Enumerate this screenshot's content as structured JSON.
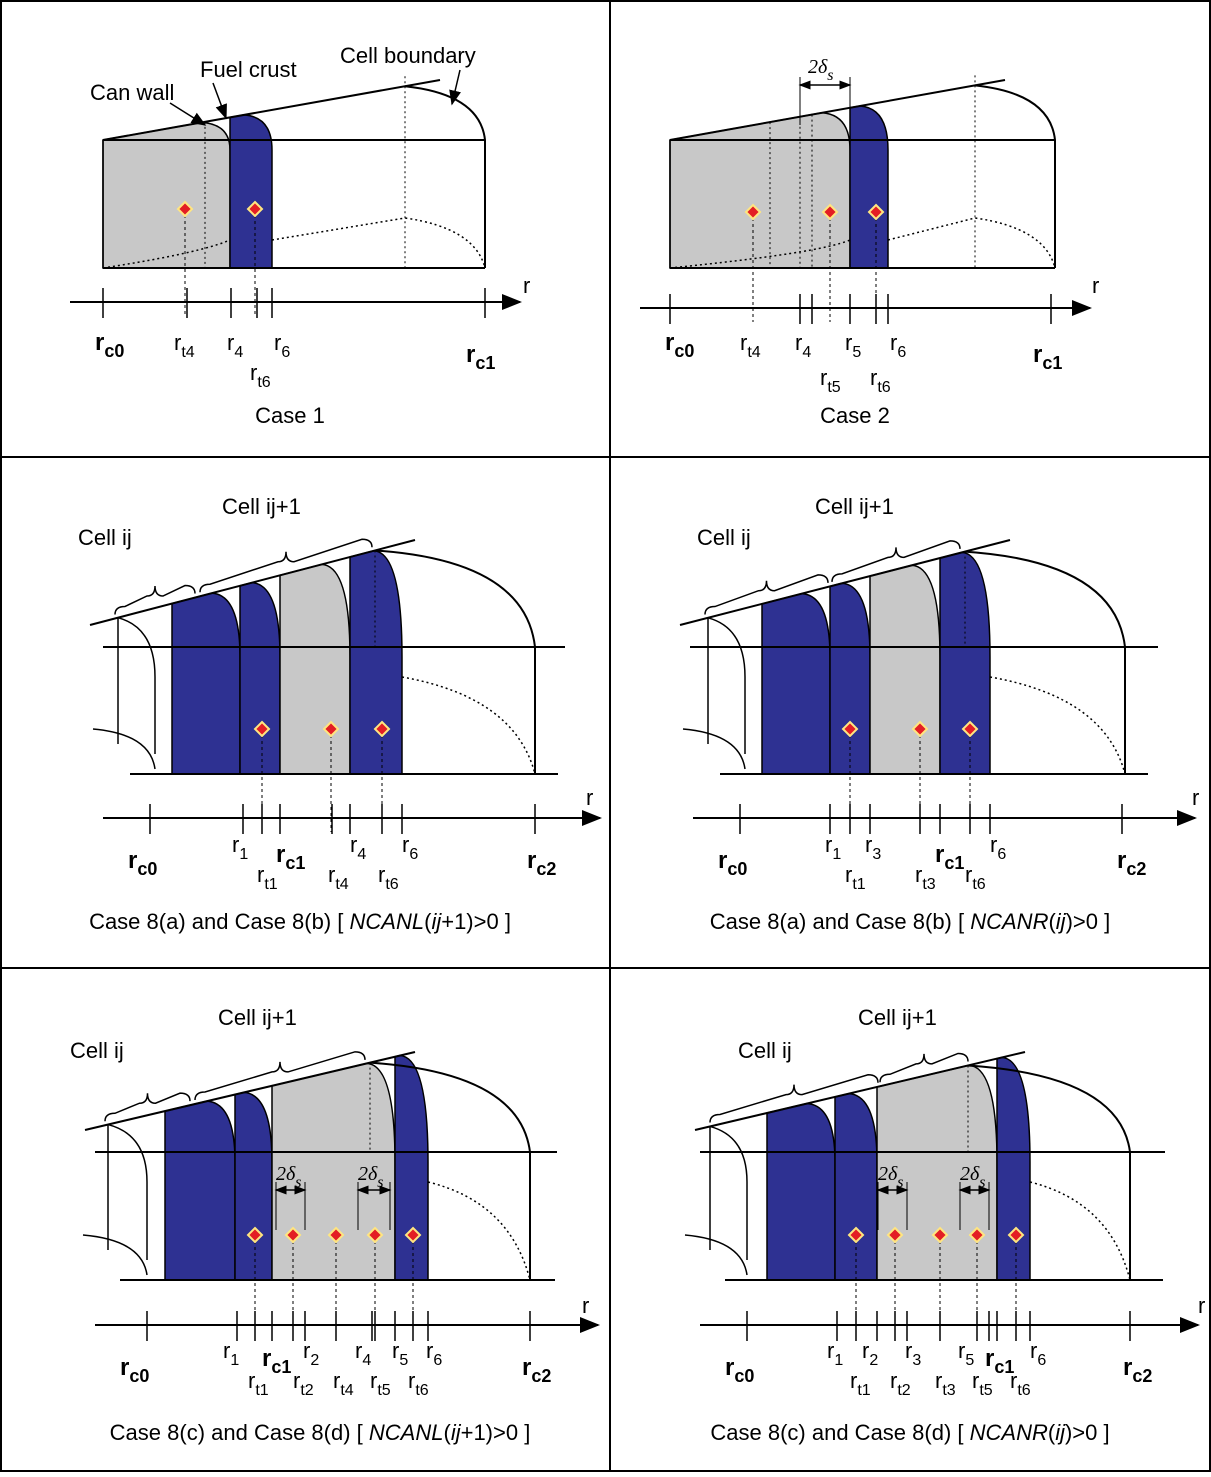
{
  "panels": [
    {
      "tick_labels": [
        {
          "base": "r",
          "sub": "c0",
          "bold": true
        },
        {
          "base": "r",
          "sub": "t4"
        },
        {
          "base": "r",
          "sub": "4"
        },
        {
          "base": "r",
          "sub": "6"
        },
        {
          "base": "r",
          "sub": "t6"
        },
        {
          "base": "r",
          "sub": "c1",
          "bold": true
        }
      ],
      "axis_label": "r",
      "annotations": [
        "Can wall",
        "Fuel crust",
        "Cell boundary"
      ],
      "spacing_labels": [],
      "caption": [
        {
          "text": "Case 1"
        }
      ]
    },
    {
      "tick_labels": [
        {
          "base": "r",
          "sub": "c0",
          "bold": true
        },
        {
          "base": "r",
          "sub": "t4"
        },
        {
          "base": "r",
          "sub": "4"
        },
        {
          "base": "r",
          "sub": "5"
        },
        {
          "base": "r",
          "sub": "6"
        },
        {
          "base": "r",
          "sub": "t5"
        },
        {
          "base": "r",
          "sub": "t6"
        },
        {
          "base": "r",
          "sub": "c1",
          "bold": true
        }
      ],
      "axis_label": "r",
      "annotations": [],
      "spacing_labels": [
        {
          "base": "2δ",
          "sub": "s"
        }
      ],
      "caption": [
        {
          "text": "Case 2"
        }
      ]
    },
    {
      "tick_labels": [
        {
          "base": "r",
          "sub": "c0",
          "bold": true
        },
        {
          "base": "r",
          "sub": "1"
        },
        {
          "base": "r",
          "sub": "c1",
          "bold": true
        },
        {
          "base": "r",
          "sub": "4"
        },
        {
          "base": "r",
          "sub": "6"
        },
        {
          "base": "r",
          "sub": "t1"
        },
        {
          "base": "r",
          "sub": "t4"
        },
        {
          "base": "r",
          "sub": "t6"
        },
        {
          "base": "r",
          "sub": "c2",
          "bold": true
        }
      ],
      "axis_label": "r",
      "annotations": [
        "Cell ij",
        "Cell ij+1"
      ],
      "spacing_labels": [],
      "caption": [
        {
          "text": "Case 8(a) and Case 8(b) [ "
        },
        {
          "text": "NCANL",
          "italic": true
        },
        {
          "text": "("
        },
        {
          "text": "ij",
          "italic": true
        },
        {
          "text": "+1)>0 ]"
        }
      ]
    },
    {
      "tick_labels": [
        {
          "base": "r",
          "sub": "c0",
          "bold": true
        },
        {
          "base": "r",
          "sub": "1"
        },
        {
          "base": "r",
          "sub": "3"
        },
        {
          "base": "r",
          "sub": "c1",
          "bold": true
        },
        {
          "base": "r",
          "sub": "6"
        },
        {
          "base": "r",
          "sub": "t1"
        },
        {
          "base": "r",
          "sub": "t3"
        },
        {
          "base": "r",
          "sub": "t6"
        },
        {
          "base": "r",
          "sub": "c2",
          "bold": true
        }
      ],
      "axis_label": "r",
      "annotations": [
        "Cell ij",
        "Cell ij+1"
      ],
      "spacing_labels": [],
      "caption": [
        {
          "text": "Case 8(a) and Case 8(b) [ "
        },
        {
          "text": "NCANR",
          "italic": true
        },
        {
          "text": "("
        },
        {
          "text": "ij",
          "italic": true
        },
        {
          "text": ")>0 ]"
        }
      ]
    },
    {
      "tick_labels": [
        {
          "base": "r",
          "sub": "c0",
          "bold": true
        },
        {
          "base": "r",
          "sub": "1"
        },
        {
          "base": "r",
          "sub": "c1",
          "bold": true
        },
        {
          "base": "r",
          "sub": "2"
        },
        {
          "base": "r",
          "sub": "4"
        },
        {
          "base": "r",
          "sub": "5"
        },
        {
          "base": "r",
          "sub": "6"
        },
        {
          "base": "r",
          "sub": "t1"
        },
        {
          "base": "r",
          "sub": "t2"
        },
        {
          "base": "r",
          "sub": "t4"
        },
        {
          "base": "r",
          "sub": "t5"
        },
        {
          "base": "r",
          "sub": "t6"
        },
        {
          "base": "r",
          "sub": "c2",
          "bold": true
        }
      ],
      "axis_label": "r",
      "annotations": [
        "Cell ij",
        "Cell ij+1"
      ],
      "spacing_labels": [
        {
          "base": "2δ",
          "sub": "s"
        },
        {
          "base": "2δ",
          "sub": "s"
        }
      ],
      "caption": [
        {
          "text": "Case 8(c) and Case 8(d) [ "
        },
        {
          "text": "NCANL",
          "italic": true
        },
        {
          "text": "("
        },
        {
          "text": "ij",
          "italic": true
        },
        {
          "text": "+1)>0 ]"
        }
      ]
    },
    {
      "tick_labels": [
        {
          "base": "r",
          "sub": "c0",
          "bold": true
        },
        {
          "base": "r",
          "sub": "1"
        },
        {
          "base": "r",
          "sub": "2"
        },
        {
          "base": "r",
          "sub": "3"
        },
        {
          "base": "r",
          "sub": "5"
        },
        {
          "base": "r",
          "sub": "c1",
          "bold": true
        },
        {
          "base": "r",
          "sub": "6"
        },
        {
          "base": "r",
          "sub": "t1"
        },
        {
          "base": "r",
          "sub": "t2"
        },
        {
          "base": "r",
          "sub": "t3"
        },
        {
          "base": "r",
          "sub": "t5"
        },
        {
          "base": "r",
          "sub": "t6"
        },
        {
          "base": "r",
          "sub": "c2",
          "bold": true
        }
      ],
      "axis_label": "r",
      "annotations": [
        "Cell ij",
        "Cell ij+1"
      ],
      "spacing_labels": [
        {
          "base": "2δ",
          "sub": "s"
        },
        {
          "base": "2δ",
          "sub": "s"
        }
      ],
      "caption": [
        {
          "text": "Case 8(c) and Case 8(d) [ "
        },
        {
          "text": "NCANR",
          "italic": true
        },
        {
          "text": "("
        },
        {
          "text": "ij",
          "italic": true
        },
        {
          "text": ")>0 ]"
        }
      ]
    }
  ]
}
